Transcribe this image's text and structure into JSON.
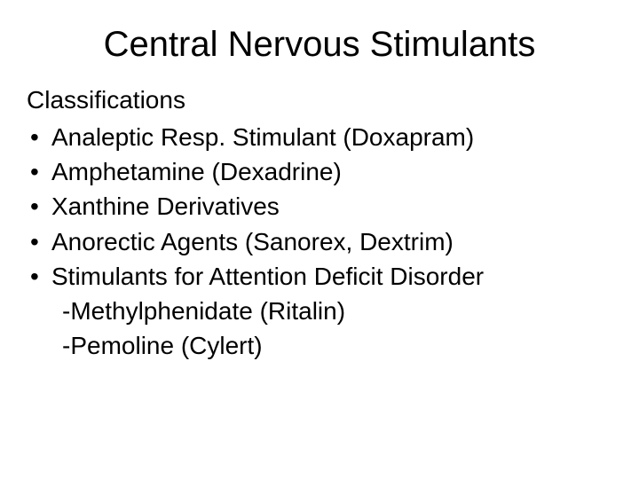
{
  "slide": {
    "title": "Central Nervous Stimulants",
    "subtitle": "Classifications",
    "bullets": [
      "Analeptic Resp. Stimulant (Doxapram)",
      "Amphetamine (Dexadrine)",
      "Xanthine Derivatives",
      "Anorectic Agents (Sanorex, Dextrim)",
      "Stimulants for Attention Deficit Disorder"
    ],
    "subitems": [
      "-Methylphenidate (Ritalin)",
      "-Pemoline (Cylert)"
    ],
    "background_color": "#ffffff",
    "text_color": "#000000",
    "title_fontsize": 40,
    "body_fontsize": 28,
    "font_family": "Arial"
  }
}
